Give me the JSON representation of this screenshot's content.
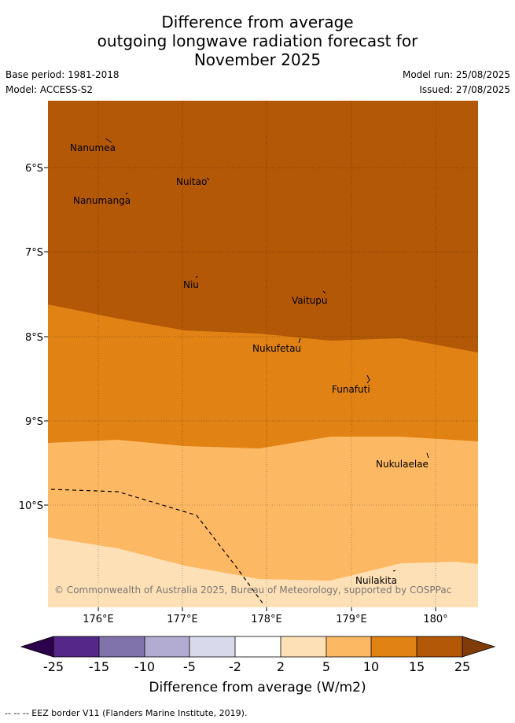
{
  "header": {
    "title_lines": [
      "Difference from average",
      "outgoing longwave radiation forecast for",
      "November 2025"
    ],
    "base_period": "Base period: 1981-2018",
    "model": "Model: ACCESS-S2",
    "model_run": "Model run: 25/08/2025",
    "issued": "Issued: 27/08/2025"
  },
  "map": {
    "lat_labels": [
      "6°S",
      "7°S",
      "8°S",
      "9°S",
      "10°S"
    ],
    "lon_labels": [
      "176°E",
      "177°E",
      "178°E",
      "179°E",
      "180°"
    ],
    "places": [
      {
        "name": "Nanumea"
      },
      {
        "name": "Nuitao"
      },
      {
        "name": "Nanumanga"
      },
      {
        "name": "Niu"
      },
      {
        "name": "Vaitupu"
      },
      {
        "name": "Nukufetau"
      },
      {
        "name": "Funafuti"
      },
      {
        "name": "Nukulaelae"
      },
      {
        "name": "Nuilakita"
      }
    ],
    "copyright": "© Commonwealth of Australia 2025, Bureau of Meteorology, supported by COSPPac",
    "colors": {
      "band_15_25": "#b35806",
      "band_10_15": "#e08214",
      "band_5_10": "#fdb863",
      "band_2_5": "#fee0b6"
    }
  },
  "colorbar": {
    "ticks": [
      "-25",
      "-15",
      "-10",
      "-5",
      "-2",
      "2",
      "5",
      "10",
      "15",
      "25"
    ],
    "colors": [
      "#542788",
      "#8073ac",
      "#b2abd2",
      "#d8daeb",
      "#ffffff",
      "#fee0b6",
      "#fdb863",
      "#e08214",
      "#b35806"
    ],
    "under_color": "#2d004b",
    "over_color": "#7f3b08",
    "label": "Difference from average (W/m2)"
  },
  "footer": {
    "legend_text": "--  --  -- EEZ border V11 (Flanders Marine Institute, 2019)."
  }
}
